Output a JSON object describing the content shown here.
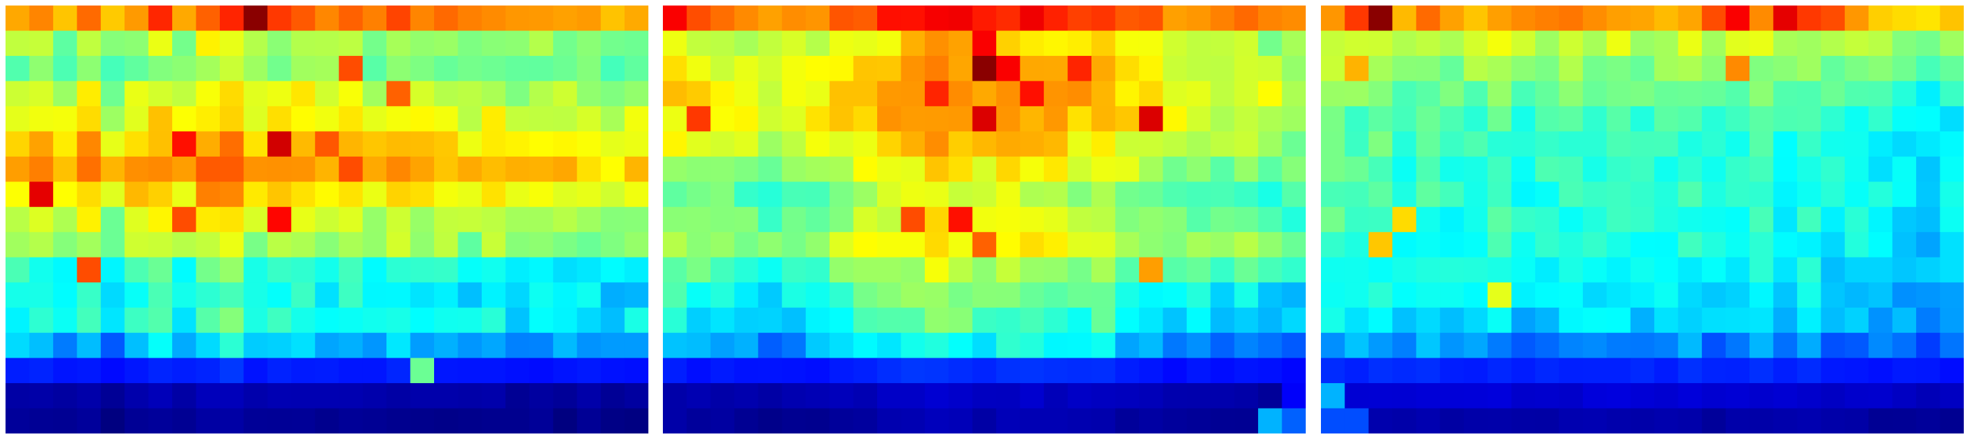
{
  "chart_data": [
    {
      "type": "heatmap",
      "colormap": "jet",
      "value_range": [
        0,
        1
      ],
      "rows": 17,
      "cols": 27,
      "row_values": [
        0.72,
        0.5,
        0.46,
        0.54,
        0.58,
        0.64,
        0.68,
        0.62,
        0.54,
        0.5,
        0.38,
        0.34,
        0.36,
        0.27,
        0.14,
        0.03,
        0.01
      ],
      "col_offsets": [
        0.03,
        0.05,
        0.0,
        0.07,
        -0.02,
        0.04,
        0.08,
        0.02,
        0.1,
        0.12,
        0.03,
        0.05,
        0.07,
        0.04,
        0.06,
        0.02,
        0.05,
        0.01,
        0.03,
        0.0,
        0.04,
        -0.01,
        0.02,
        0.0,
        0.01,
        -0.02,
        0.0
      ],
      "hot_cells": [
        [
          0,
          10,
          0.99
        ],
        [
          0,
          9,
          0.84
        ],
        [
          0,
          11,
          0.82
        ],
        [
          0,
          8,
          0.78
        ],
        [
          5,
          11,
          0.92
        ],
        [
          5,
          7,
          0.86
        ],
        [
          7,
          1,
          0.9
        ],
        [
          8,
          11,
          0.87
        ],
        [
          10,
          3,
          0.8
        ],
        [
          2,
          14,
          0.8
        ],
        [
          3,
          16,
          0.78
        ],
        [
          6,
          14,
          0.8
        ],
        [
          5,
          13,
          0.79
        ],
        [
          8,
          7,
          0.8
        ],
        [
          14,
          17,
          0.48
        ]
      ]
    },
    {
      "type": "heatmap",
      "colormap": "jet",
      "value_range": [
        0,
        1
      ],
      "rows": 17,
      "cols": 27,
      "row_values": [
        0.74,
        0.55,
        0.58,
        0.62,
        0.6,
        0.56,
        0.52,
        0.46,
        0.48,
        0.52,
        0.44,
        0.38,
        0.34,
        0.27,
        0.14,
        0.04,
        0.02
      ],
      "col_offsets": [
        0.04,
        0.02,
        0.03,
        0.0,
        -0.02,
        0.0,
        0.02,
        0.05,
        0.08,
        0.1,
        0.12,
        0.15,
        0.13,
        0.1,
        0.12,
        0.12,
        0.1,
        0.08,
        0.1,
        0.05,
        0.03,
        0.0,
        0.0,
        -0.02,
        0.0,
        -0.03,
        -0.04
      ],
      "hot_cells": [
        [
          0,
          0,
          0.88
        ],
        [
          0,
          13,
          0.85
        ],
        [
          1,
          13,
          0.88
        ],
        [
          2,
          14,
          0.88
        ],
        [
          2,
          17,
          0.84
        ],
        [
          2,
          14,
          0.88
        ],
        [
          2,
          13,
          0.99
        ],
        [
          3,
          15,
          0.86
        ],
        [
          4,
          13,
          0.91
        ],
        [
          4,
          20,
          0.91
        ],
        [
          3,
          11,
          0.84
        ],
        [
          4,
          1,
          0.82
        ],
        [
          8,
          12,
          0.86
        ],
        [
          8,
          10,
          0.8
        ],
        [
          9,
          13,
          0.78
        ],
        [
          10,
          20,
          0.72
        ],
        [
          16,
          25,
          0.3
        ],
        [
          16,
          26,
          0.22
        ],
        [
          15,
          26,
          0.12
        ]
      ]
    },
    {
      "type": "heatmap",
      "colormap": "jet",
      "value_range": [
        0,
        1
      ],
      "rows": 17,
      "cols": 27,
      "row_values": [
        0.72,
        0.56,
        0.52,
        0.48,
        0.44,
        0.43,
        0.42,
        0.42,
        0.41,
        0.4,
        0.38,
        0.36,
        0.34,
        0.26,
        0.16,
        0.08,
        0.04
      ],
      "col_offsets": [
        0.04,
        0.02,
        0.03,
        0.0,
        0.02,
        -0.01,
        0.0,
        0.02,
        -0.02,
        0.0,
        0.01,
        0.0,
        0.01,
        -0.01,
        0.0,
        0.01,
        -0.02,
        0.0,
        0.01,
        -0.02,
        0.0,
        -0.03,
        -0.02,
        -0.04,
        -0.06,
        -0.08,
        -0.06
      ],
      "hot_cells": [
        [
          0,
          2,
          0.99
        ],
        [
          0,
          1,
          0.82
        ],
        [
          0,
          17,
          0.88
        ],
        [
          0,
          19,
          0.9
        ],
        [
          0,
          16,
          0.8
        ],
        [
          0,
          20,
          0.82
        ],
        [
          0,
          21,
          0.8
        ],
        [
          2,
          17,
          0.74
        ],
        [
          2,
          1,
          0.7
        ],
        [
          9,
          2,
          0.68
        ],
        [
          8,
          3,
          0.66
        ],
        [
          11,
          7,
          0.6
        ],
        [
          16,
          0,
          0.2
        ],
        [
          15,
          0,
          0.3
        ],
        [
          16,
          1,
          0.2
        ]
      ]
    }
  ]
}
